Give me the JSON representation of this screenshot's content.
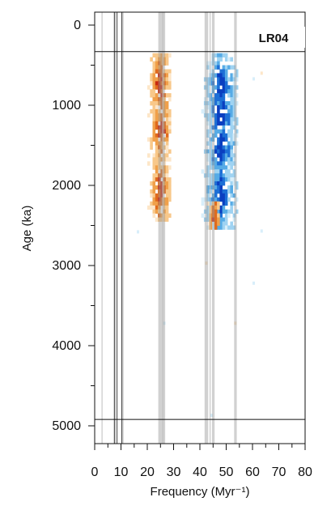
{
  "chart_data": {
    "type": "heatmap",
    "panel_label": "LR04",
    "xlabel": "Frequency (Myr⁻¹)",
    "ylabel": "Age (ka)",
    "xlim": [
      0,
      80
    ],
    "ylim": [
      5300,
      0
    ],
    "x_ticks": [
      0,
      10,
      20,
      30,
      40,
      50,
      60,
      70,
      80
    ],
    "y_ticks": [
      0,
      1000,
      2000,
      3000,
      4000,
      5000
    ],
    "data_window_age": [
      330,
      4920
    ],
    "reference_frequencies_dark": [
      7.6,
      8.5,
      10.3
    ],
    "reference_frequencies_thin": [
      2.8,
      25.9,
      43.9
    ],
    "reference_frequency_bands_gray": [
      [
        24.2,
        26.8
      ],
      [
        41.8,
        43.2
      ],
      [
        44.6,
        45.6
      ],
      [
        53.0,
        54.0
      ],
      [
        7.1,
        7.9
      ],
      [
        10.2,
        11.0
      ]
    ],
    "scatter_colors": {
      "positive": [
        "#fde6c8",
        "#f8c88a",
        "#f0a04a",
        "#e06a1c",
        "#c8280f"
      ],
      "negative": [
        "#d8eefa",
        "#9fd3f2",
        "#56abe6",
        "#1d6fd6",
        "#0a3fc0"
      ]
    },
    "power_ridges": [
      {
        "name_hint": "obliquity-positive",
        "freq_center": 24.5,
        "freq_width": 4.5,
        "age_start": 350,
        "age_end": 2450,
        "sign": 1,
        "peak_ages": [
          700,
          1300,
          2050
        ]
      },
      {
        "name_hint": "precession-negative",
        "freq_center": 47.5,
        "freq_width": 7.0,
        "age_start": 350,
        "age_end": 2550,
        "sign": -1,
        "peak_ages": [
          750,
          1100,
          1500,
          2100
        ]
      },
      {
        "name_hint": "precession-positive-flank",
        "freq_center": 45.0,
        "freq_width": 2.5,
        "age_start": 2200,
        "age_end": 2550,
        "sign": 1,
        "peak_ages": [
          2450
        ]
      }
    ]
  }
}
